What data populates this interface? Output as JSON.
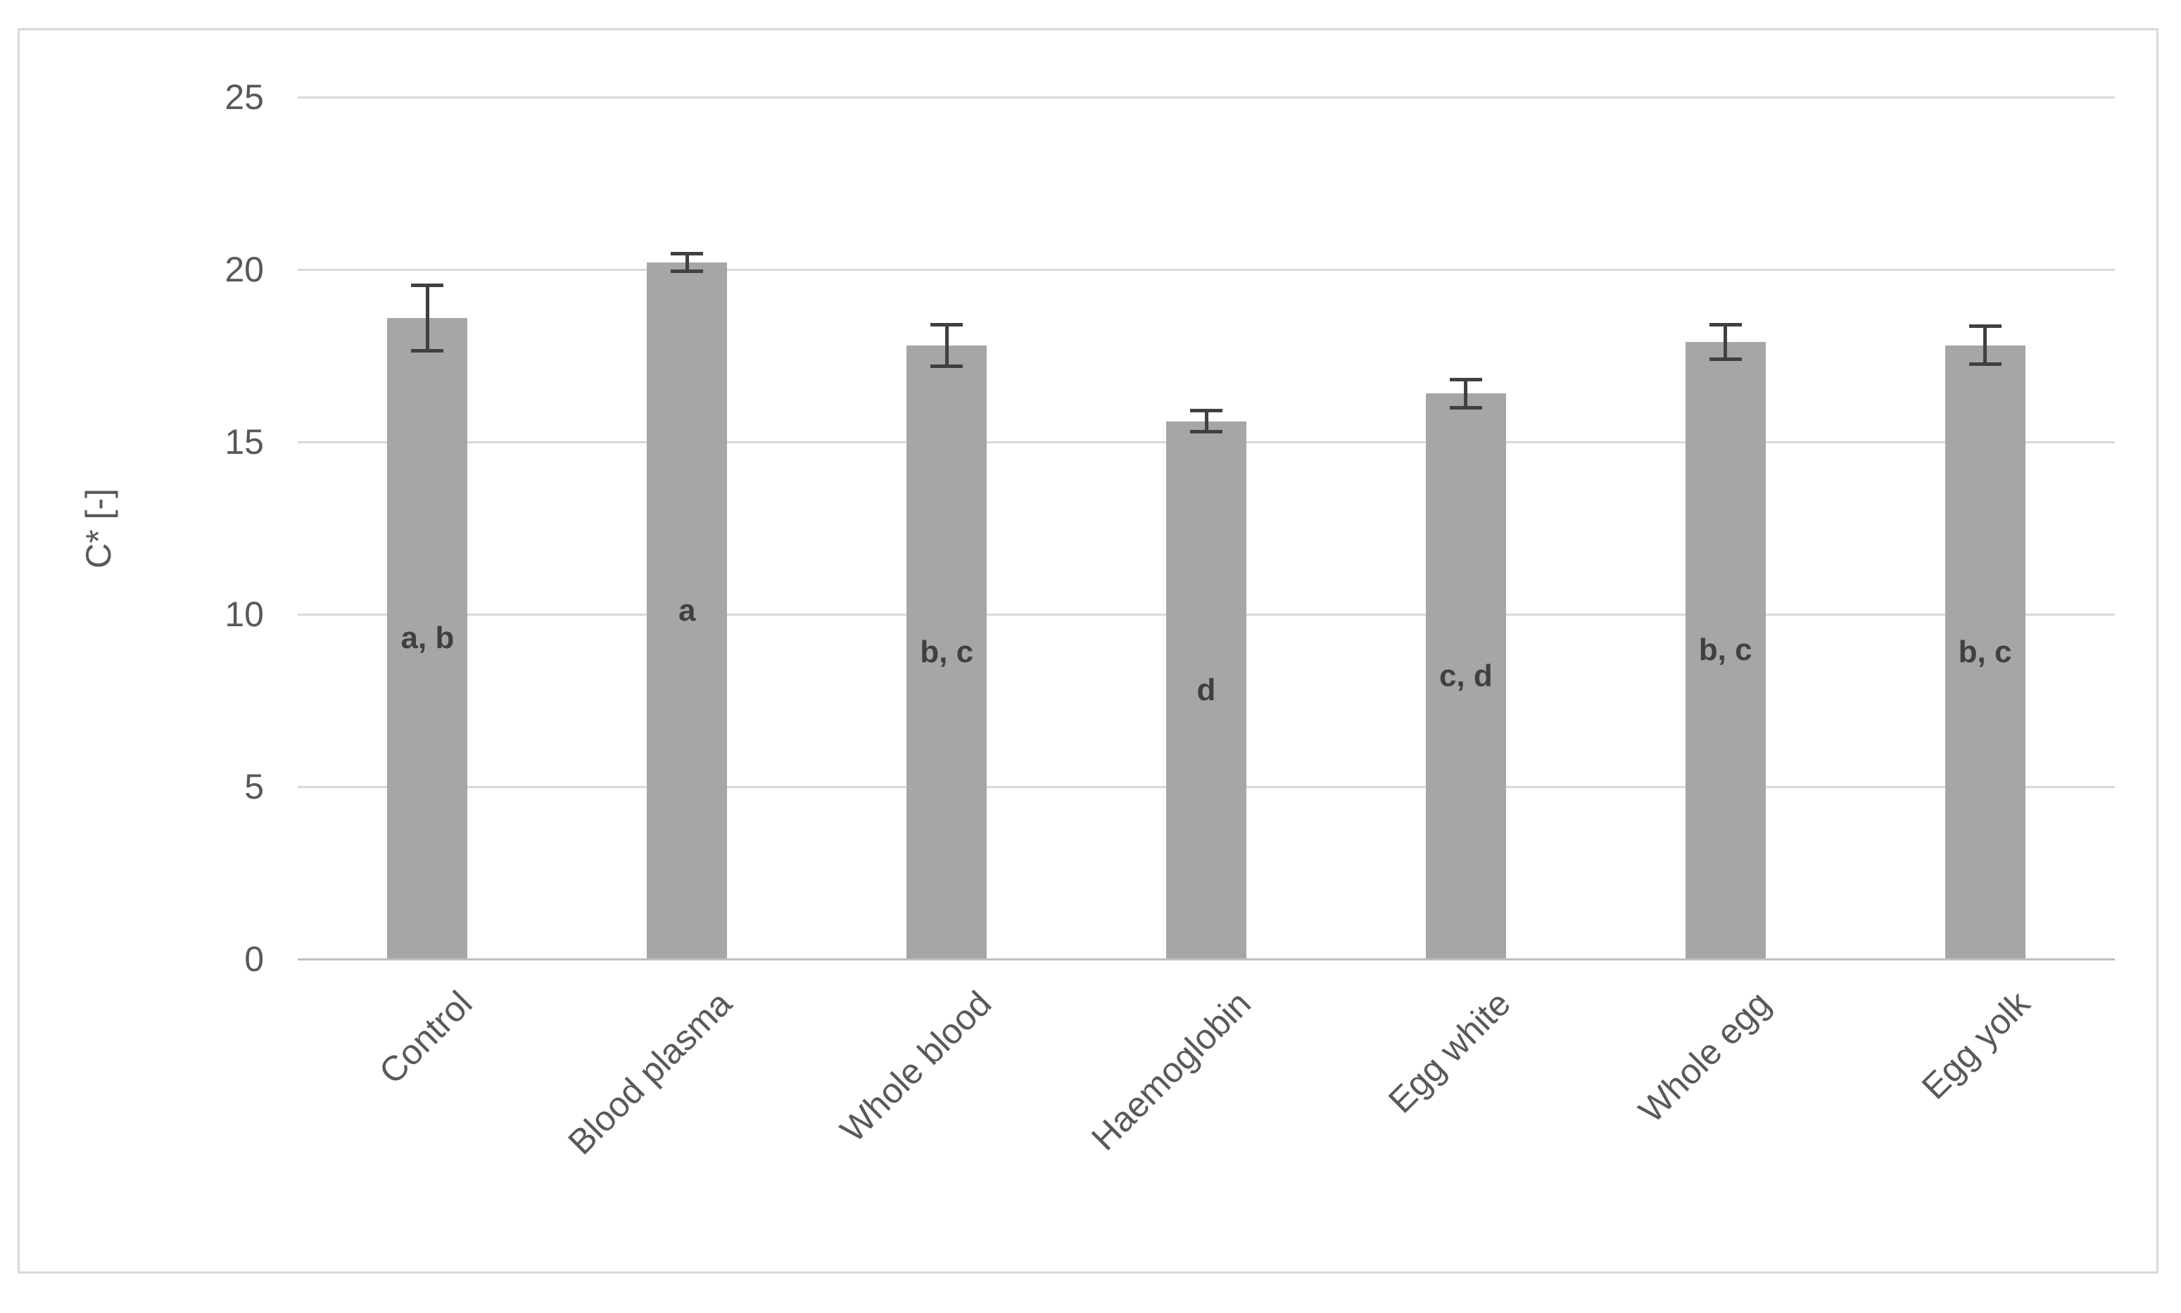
{
  "chart_data": {
    "type": "bar",
    "title": "",
    "categories": [
      "Control",
      "Blood plasma",
      "Whole blood",
      "Haemoglobin",
      "Egg white",
      "Whole egg",
      "Egg yolk"
    ],
    "values": [
      18.6,
      20.2,
      17.8,
      15.6,
      16.4,
      17.9,
      17.8
    ],
    "error_bars": [
      0.95,
      0.25,
      0.6,
      0.3,
      0.4,
      0.5,
      0.55
    ],
    "point_labels": [
      "a, b",
      "a",
      "b, c",
      "d",
      "c, d",
      "b, c",
      "b, c"
    ],
    "xlabel": "",
    "ylabel": "C* [-]",
    "ylim": [
      0,
      25
    ],
    "yticks": [
      0,
      5,
      10,
      15,
      20,
      25
    ],
    "grid": "horizontal",
    "legend_position": "none",
    "x_tick_rotation_deg": 45,
    "colors": {
      "bar_fill": "#a6a6a6",
      "error_bar": "#404040",
      "gridline": "#d9d9d9",
      "axis_line": "#bfbfbf",
      "tick_label": "#595959",
      "point_label": "#404040",
      "frame_border": "#d9d9d9",
      "background": "#ffffff"
    }
  }
}
